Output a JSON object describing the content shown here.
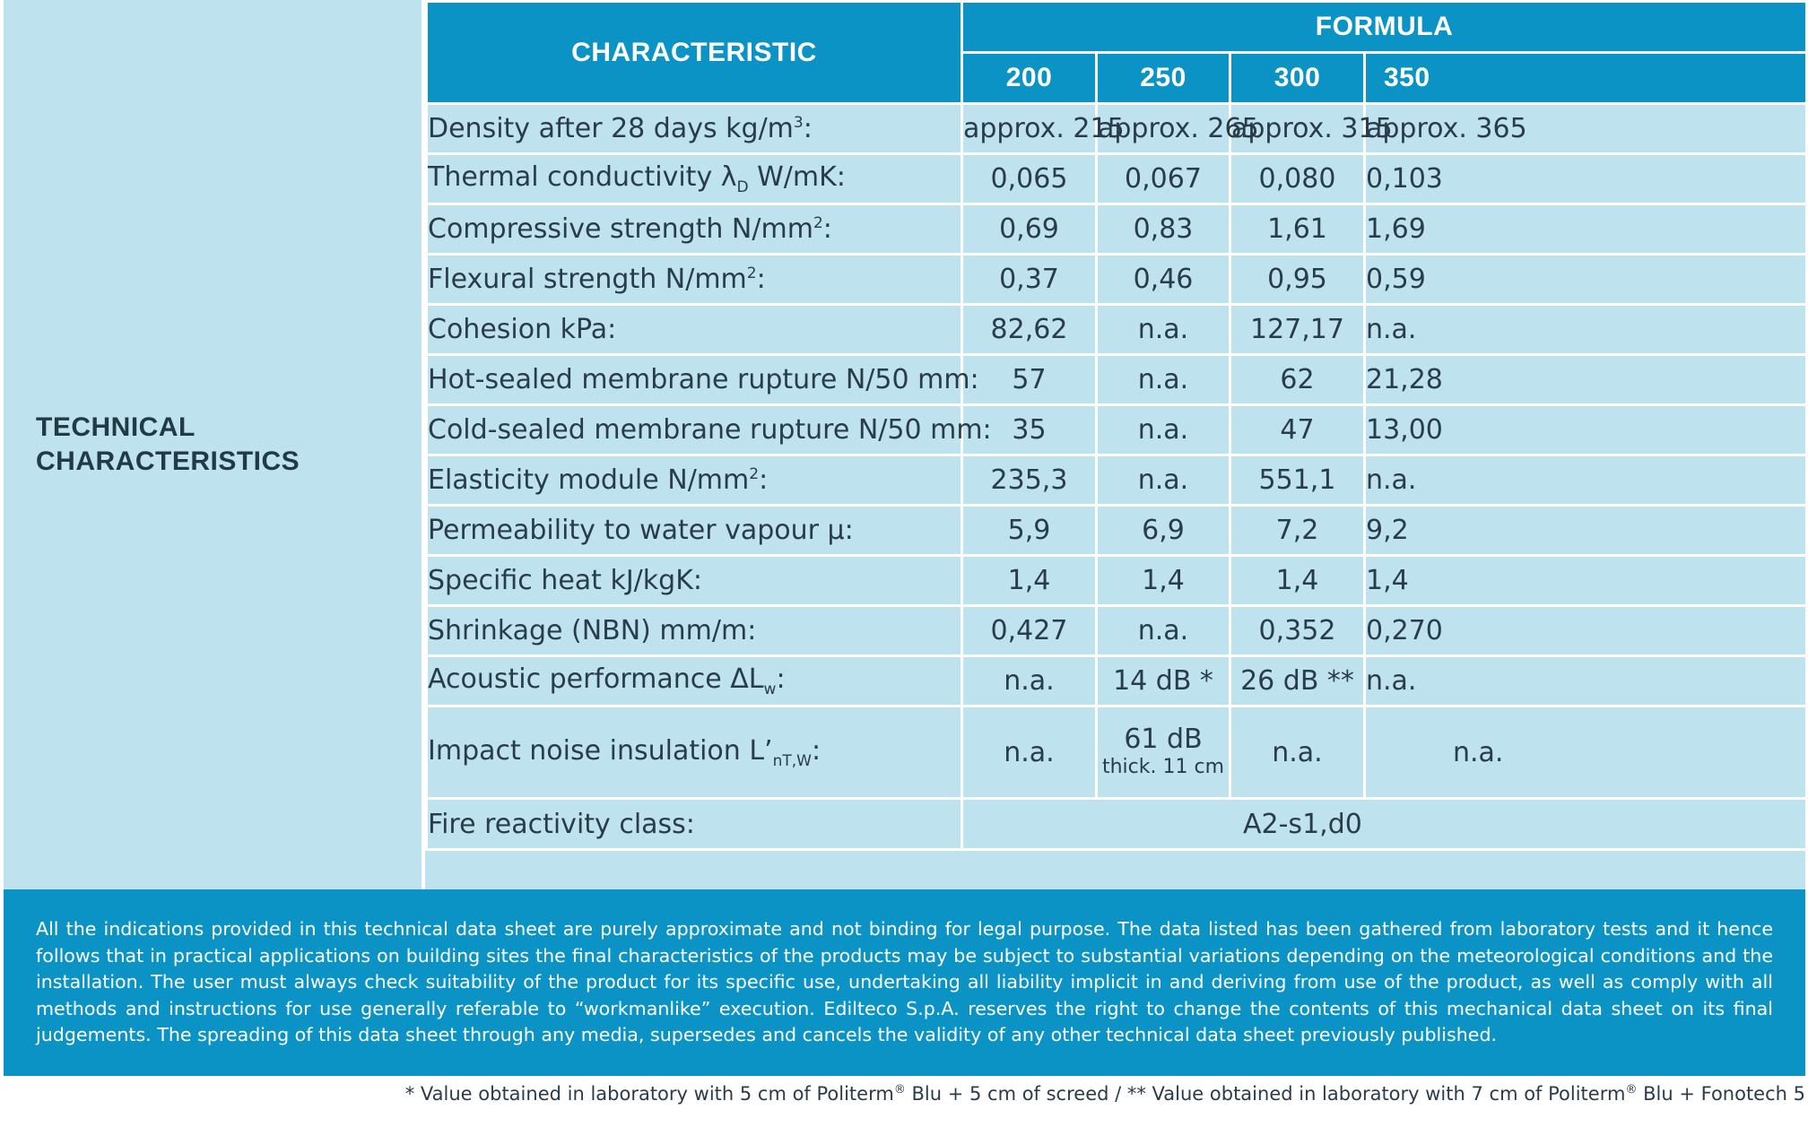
{
  "side_label": {
    "line1": "TECHNICAL",
    "line2": "CHARACTERISTICS"
  },
  "header": {
    "characteristic": "CHARACTERISTIC",
    "formula": "FORMULA",
    "columns": [
      "200",
      "250",
      "300",
      "350"
    ]
  },
  "rows": [
    {
      "label": "Density after 28 days kg/m",
      "sup": "3",
      "suffix": ":",
      "values": [
        "approx. 215",
        "approx. 265",
        "approx. 315",
        "approx. 365"
      ]
    },
    {
      "label": "Thermal conductivity λ",
      "sub": "D",
      "suffix": " W/mK:",
      "values": [
        "0,065",
        "0,067",
        "0,080",
        "0,103"
      ]
    },
    {
      "label": "Compressive strength N/mm",
      "sup": "2",
      "suffix": ":",
      "values": [
        "0,69",
        "0,83",
        "1,61",
        "1,69"
      ]
    },
    {
      "label": "Flexural strength N/mm",
      "sup": "2",
      "suffix": ":",
      "values": [
        "0,37",
        "0,46",
        "0,95",
        "0,59"
      ]
    },
    {
      "label": "Cohesion kPa:",
      "values": [
        "82,62",
        "n.a.",
        "127,17",
        "n.a."
      ]
    },
    {
      "label": "Hot-sealed membrane rupture N/50 mm:",
      "values": [
        "57",
        "n.a.",
        "62",
        "21,28"
      ]
    },
    {
      "label": "Cold-sealed membrane rupture N/50 mm:",
      "values": [
        "35",
        "n.a.",
        "47",
        "13,00"
      ]
    },
    {
      "label": "Elasticity module N/mm",
      "sup": "2",
      "suffix": ":",
      "values": [
        "235,3",
        "n.a.",
        "551,1",
        "n.a."
      ]
    },
    {
      "label": "Permeability to water vapour μ:",
      "values": [
        "5,9",
        "6,9",
        "7,2",
        "9,2"
      ]
    },
    {
      "label": "Specific heat kJ/kgK:",
      "values": [
        "1,4",
        "1,4",
        "1,4",
        "1,4"
      ]
    },
    {
      "label": "Shrinkage (NBN) mm/m:",
      "values": [
        "0,427",
        "n.a.",
        "0,352",
        "0,270"
      ]
    },
    {
      "label": "Acoustic performance ΔL",
      "sub": "w",
      "suffix": ":",
      "values": [
        "n.a.",
        "14 dB *",
        "26 dB **",
        "n.a."
      ]
    }
  ],
  "impact_row": {
    "label": "Impact noise insulation L’",
    "sub": "nT,W",
    "suffix": ":",
    "v200": "n.a.",
    "v250_main": "61 dB",
    "v250_note": "thick. 11 cm",
    "v300": "n.a.",
    "v350": "n.a."
  },
  "fire_row": {
    "label": "Fire reactivity class:",
    "value": "A2-s1,d0"
  },
  "disclaimer": "All the indications provided in this technical data sheet are purely approximate and not binding for legal purpose. The data listed has been gathered from laboratory tests and it hence follows that in practical applications on building sites the final characteristics of the products may be subject to substantial variations depending on the meteorological conditions and the installation. The user must always check suitability of the product for its specific use, undertaking all liability implicit in and deriving from use of the product, as well as comply with all methods and instructions for use generally referable to “workmanlike” execution. Edilteco S.p.A. reserves the right to change the contents of this mechanical data sheet on its final judgements. The spreading of this data sheet through any media, supersedes and cancels the validity of any other technical data sheet previously published.",
  "footnote": {
    "part1": "* Value obtained in laboratory with 5 cm of Politerm",
    "reg1": "®",
    "part2": " Blu + 5 cm of screed / ** Value obtained in laboratory with 7 cm of Politerm",
    "reg2": "®",
    "part3": " Blu + Fonotech 5"
  }
}
